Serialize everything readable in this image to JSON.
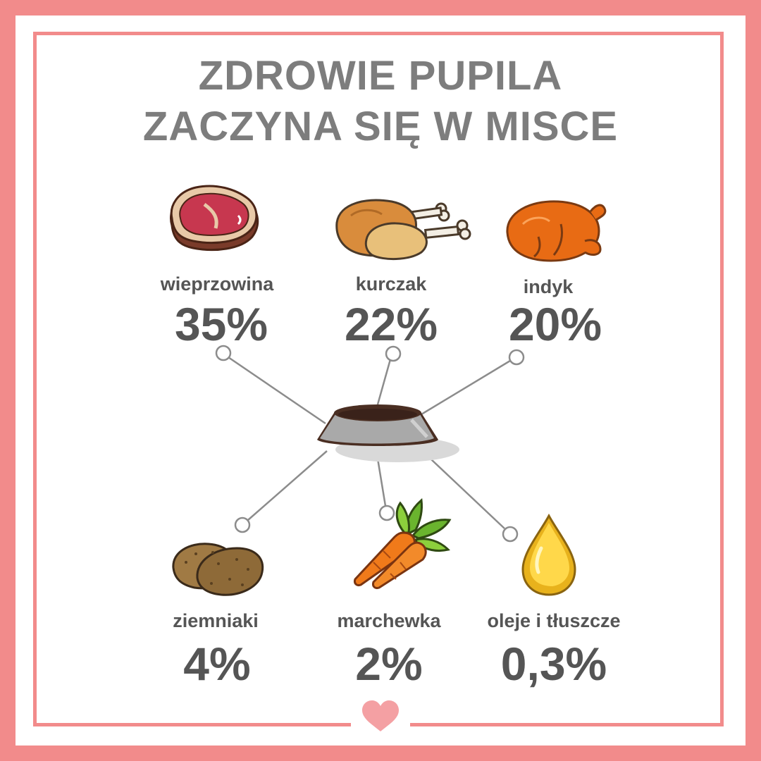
{
  "title": {
    "line1": "ZDROWIE PUPILA",
    "line2": "ZACZYNA SIĘ W MISCE"
  },
  "ingredients": [
    {
      "name": "wieprzowina",
      "percent": "35%",
      "icon": "meat-steak-icon"
    },
    {
      "name": "kurczak",
      "percent": "22%",
      "icon": "chicken-leg-icon"
    },
    {
      "name": "indyk",
      "percent": "20%",
      "icon": "roast-turkey-icon"
    },
    {
      "name": "ziemniaki",
      "percent": "4%",
      "icon": "potato-icon"
    },
    {
      "name": "marchewka",
      "percent": "2%",
      "icon": "carrot-icon"
    },
    {
      "name": "oleje i tłuszcze",
      "percent": "0,3%",
      "icon": "oil-drop-icon"
    }
  ],
  "center_icon": "dog-bowl-icon",
  "footer_icon": "heart-icon",
  "colors": {
    "frame": "#f28b8b",
    "title": "#7d7d7d",
    "text": "#555555",
    "heart": "#f4a0a3",
    "line": "#8c8c8c"
  }
}
